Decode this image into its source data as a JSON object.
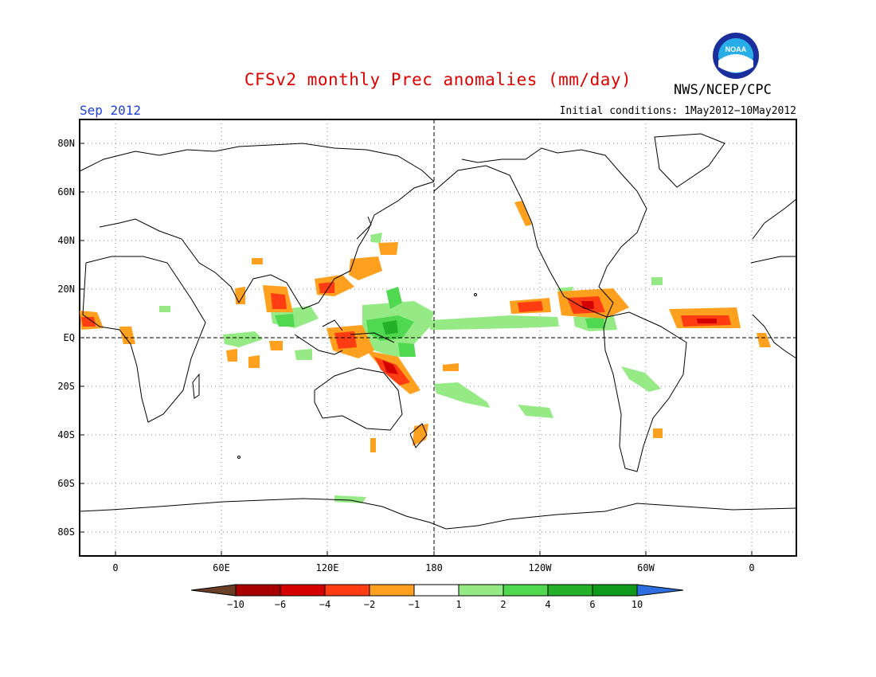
{
  "header": {
    "title": "CFSv2 monthly Prec anomalies (mm/day)",
    "month": "Sep 2012",
    "initial_conditions": "Initial conditions: 1May2012−10May2012",
    "agency": "NWS/NCEP/CPC",
    "logo_text": "NOAA"
  },
  "axes": {
    "lat_labels": [
      "80N",
      "60N",
      "40N",
      "20N",
      "EQ",
      "20S",
      "40S",
      "60S",
      "80S"
    ],
    "lon_labels": [
      "0",
      "60E",
      "120E",
      "180",
      "120W",
      "60W",
      "0"
    ]
  },
  "colorbar": {
    "labels": [
      "−10",
      "−6",
      "−4",
      "−2",
      "−1",
      "1",
      "2",
      "4",
      "6",
      "10"
    ],
    "colors": {
      "lt_neg10": "#6b3e26",
      "neg10_neg6": "#a80000",
      "neg6_neg4": "#d40000",
      "neg4_neg2": "#ff3c12",
      "neg2_neg1": "#ffa01e",
      "neg1_1": "#ffffff",
      "1_2": "#95ea86",
      "2_4": "#50d850",
      "4_6": "#24b028",
      "6_10": "#0f9a1c",
      "gt_10": "#2d6fe0"
    }
  }
}
